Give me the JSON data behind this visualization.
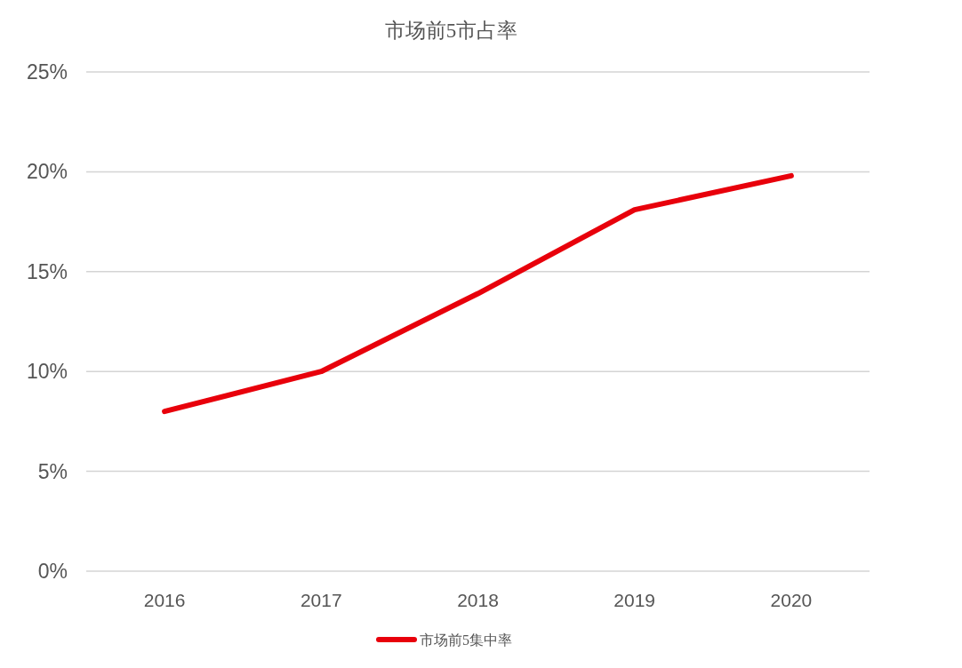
{
  "chart_data": {
    "type": "line",
    "title": "市场前5市占率",
    "categories": [
      "2016",
      "2017",
      "2018",
      "2019",
      "2020"
    ],
    "series": [
      {
        "name": "市场前5集中率",
        "color": "#e8000b",
        "values": [
          8.0,
          10.0,
          13.9,
          18.1,
          19.8
        ]
      }
    ],
    "ylim": [
      0,
      25
    ],
    "yticks": [
      {
        "value": 0,
        "label": "0%"
      },
      {
        "value": 5,
        "label": "5%"
      },
      {
        "value": 10,
        "label": "10%"
      },
      {
        "value": 15,
        "label": "15%"
      },
      {
        "value": 20,
        "label": "20%"
      },
      {
        "value": 25,
        "label": "25%"
      }
    ],
    "grid": "y",
    "legend": "bottom"
  }
}
